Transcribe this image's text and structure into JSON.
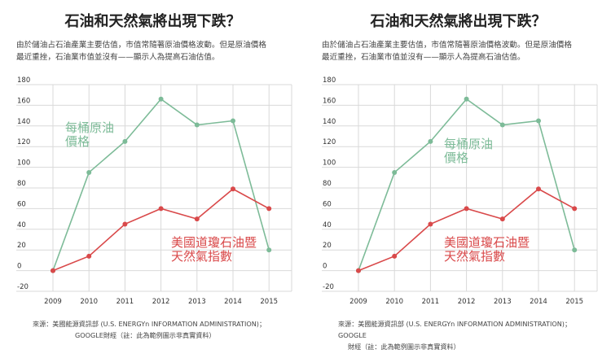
{
  "colors": {
    "oil": "#7dbb98",
    "stock": "#d9494a",
    "grid": "#d9d9d9",
    "axis": "#333333"
  },
  "panels": [
    {
      "title": "石油和天然氣將出現下跌？",
      "subtitle_line1": "由於儲油占石油產業主要估值，市值常隨著原油價格波動。但是原油價格",
      "subtitle_line2": "最近重挫，石油業市值並沒有——顯示人為提高石油估值。",
      "source_line1": "來源：美國能源資訊部 (U.S. ENERGYn INFORMATION ADMINISTRATION)；",
      "source_line2": "GOOGLE財經（註：此為範例圖示非真實資料）"
    },
    {
      "title": "石油和天然氣將出現下跌？",
      "subtitle_line1": "由於儲油占石油產業主要估值，市值常隨著原油價格波動。但是原油價格",
      "subtitle_line2": "最近重挫，石油業市值並沒有——顯示人為提高石油估值。",
      "source_line1": "來源：美國能源資訊部 (U.S. ENERGYn INFORMATION ADMINISTRATION)；GOOGLE",
      "source_line2": "財經（註：此為範例圖示非真實資料）"
    }
  ],
  "chart_data": [
    {
      "type": "line",
      "title": "石油和天然氣將出現下跌？",
      "x": [
        "2009",
        "2010",
        "2011",
        "2012",
        "2013",
        "2014",
        "2015"
      ],
      "yticks": [
        "180",
        "160",
        "140",
        "120",
        "100",
        "80",
        "60",
        "40",
        "20",
        "0",
        "-20"
      ],
      "ylim": [
        -20,
        180
      ],
      "series": [
        {
          "name_line1": "每桶原油",
          "name_line2": "價格",
          "color": "#7dbb98",
          "values": [
            0,
            95,
            125,
            166,
            141,
            145,
            20
          ]
        },
        {
          "name_line1": "美國道瓊石油暨",
          "name_line2": "天然氣指數",
          "color": "#d9494a",
          "values": [
            0,
            14,
            45,
            60,
            50,
            79,
            60
          ]
        }
      ]
    },
    {
      "type": "line",
      "title": "石油和天然氣將出現下跌？",
      "x": [
        "2009",
        "2010",
        "2011",
        "2012",
        "2013",
        "2014",
        "2015"
      ],
      "yticks": [
        "180",
        "160",
        "140",
        "120",
        "100",
        "80",
        "60",
        "40",
        "20",
        "0",
        "-20"
      ],
      "ylim": [
        -20,
        180
      ],
      "series": [
        {
          "name_line1": "每桶原油",
          "name_line2": "價格",
          "color": "#7dbb98",
          "values": [
            0,
            95,
            125,
            166,
            141,
            145,
            20
          ]
        },
        {
          "name_line1": "美國道瓊石油暨",
          "name_line2": "天然氣指數",
          "color": "#d9494a",
          "values": [
            0,
            14,
            45,
            60,
            50,
            79,
            60
          ]
        }
      ]
    }
  ]
}
